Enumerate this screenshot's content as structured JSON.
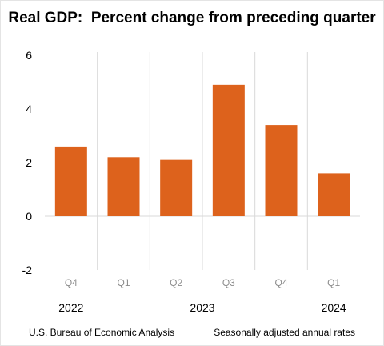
{
  "chart_data": {
    "type": "bar",
    "title": "Real GDP:  Percent change from preceding quarter",
    "categories": [
      "Q4",
      "Q1",
      "Q2",
      "Q3",
      "Q4",
      "Q1"
    ],
    "years": [
      {
        "label": "2022",
        "span": [
          0,
          0
        ]
      },
      {
        "label": "2023",
        "span": [
          1,
          4
        ]
      },
      {
        "label": "2024",
        "span": [
          5,
          5
        ]
      }
    ],
    "series": [
      {
        "values": [
          2.6,
          2.2,
          2.1,
          4.9,
          3.4,
          1.6
        ],
        "color": "#dd621c"
      }
    ],
    "ylim": [
      -2,
      6
    ],
    "yticks": [
      -2,
      0,
      2,
      4,
      6
    ],
    "xlabel": "",
    "ylabel": "",
    "grid": "vertical separators",
    "legend": "none"
  },
  "footer": {
    "source": "U.S. Bureau of Economic Analysis",
    "note": "Seasonally adjusted annual rates"
  },
  "colors": {
    "bar": "#dd621c",
    "grid": "#d9d9d9",
    "category_label": "#8c8c8c"
  }
}
